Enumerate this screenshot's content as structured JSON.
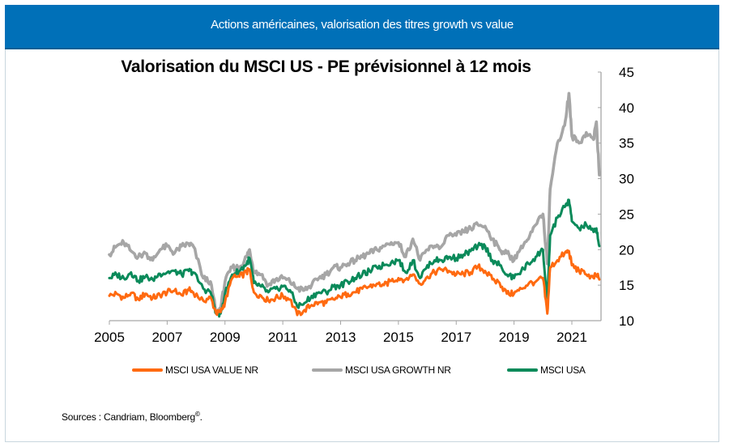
{
  "header": {
    "title": "Actions américaines, valorisation des titres growth vs value"
  },
  "footer": {
    "source": "Sources : Candriam, Bloomberg",
    "source_mark": "©",
    "source_end": "."
  },
  "chart_data": {
    "type": "line",
    "title": "Valorisation du MSCI US - PE prévisionnel à 12 mois",
    "xlabel": "",
    "ylabel": "",
    "xlim": [
      2005,
      2022.0
    ],
    "ylim": [
      10,
      45
    ],
    "y_axis_side": "right",
    "yticks": [
      10,
      15,
      20,
      25,
      30,
      35,
      40,
      45
    ],
    "xticks": [
      2005,
      2007,
      2009,
      2011,
      2013,
      2015,
      2017,
      2019,
      2021
    ],
    "grid": false,
    "legend_position": "bottom",
    "x": [
      2005.0,
      2005.25,
      2005.5,
      2005.75,
      2006.0,
      2006.25,
      2006.5,
      2006.75,
      2007.0,
      2007.25,
      2007.5,
      2007.75,
      2007.9,
      2008.25,
      2008.5,
      2008.7,
      2008.85,
      2009.0,
      2009.25,
      2009.5,
      2009.75,
      2009.85,
      2010.0,
      2010.25,
      2010.5,
      2010.75,
      2011.0,
      2011.25,
      2011.5,
      2011.75,
      2012.0,
      2012.25,
      2012.5,
      2012.75,
      2013.0,
      2013.25,
      2013.5,
      2013.75,
      2014.0,
      2014.25,
      2014.5,
      2014.75,
      2015.0,
      2015.25,
      2015.5,
      2015.75,
      2016.0,
      2016.25,
      2016.5,
      2016.75,
      2017.0,
      2017.25,
      2017.5,
      2017.75,
      2018.0,
      2018.25,
      2018.5,
      2018.75,
      2019.0,
      2019.25,
      2019.5,
      2019.75,
      2020.0,
      2020.15,
      2020.25,
      2020.5,
      2020.75,
      2020.9,
      2021.0,
      2021.25,
      2021.5,
      2021.75,
      2021.85,
      2021.95
    ],
    "series": [
      {
        "name": "MSCI USA VALUE NR",
        "color": "#ff6a10",
        "values": [
          13.5,
          13.8,
          13.2,
          13.9,
          13.0,
          13.8,
          13.2,
          13.6,
          14.0,
          14.2,
          13.6,
          14.3,
          14.0,
          12.8,
          13.3,
          11.0,
          11.2,
          12.6,
          16.0,
          16.2,
          16.8,
          17.2,
          14.0,
          13.5,
          12.8,
          13.2,
          13.5,
          13.0,
          10.8,
          11.5,
          12.2,
          12.6,
          12.5,
          13.0,
          13.3,
          13.8,
          14.0,
          14.5,
          14.8,
          15.2,
          15.0,
          15.6,
          16.0,
          15.8,
          16.5,
          15.2,
          16.2,
          16.8,
          17.2,
          17.0,
          16.5,
          16.6,
          16.8,
          17.6,
          17.0,
          15.8,
          15.3,
          13.8,
          13.8,
          14.5,
          15.2,
          15.5,
          16.0,
          11.0,
          17.5,
          18.5,
          19.5,
          19.8,
          17.8,
          17.0,
          16.5,
          16.0,
          16.5,
          15.8
        ]
      },
      {
        "name": "MSCI USA GROWTH  NR",
        "color": "#a6a6a6",
        "values": [
          19.3,
          20.5,
          21.0,
          19.8,
          19.0,
          19.5,
          18.5,
          20.0,
          20.5,
          19.5,
          20.5,
          20.8,
          20.5,
          16.0,
          15.5,
          11.0,
          11.8,
          15.5,
          17.5,
          17.5,
          19.0,
          20.0,
          17.0,
          16.5,
          15.0,
          15.8,
          16.0,
          15.5,
          14.5,
          14.3,
          15.0,
          16.0,
          16.5,
          17.5,
          17.5,
          18.0,
          18.5,
          19.0,
          19.5,
          20.0,
          20.5,
          21.0,
          21.0,
          19.0,
          21.5,
          18.5,
          20.0,
          20.5,
          20.5,
          22.0,
          22.0,
          22.5,
          23.0,
          23.5,
          23.3,
          21.5,
          20.0,
          19.5,
          18.5,
          20.5,
          21.5,
          23.5,
          25.0,
          18.0,
          28.5,
          35.0,
          37.5,
          42.0,
          36.0,
          35.0,
          36.5,
          35.5,
          38.0,
          30.5
        ]
      },
      {
        "name": "MSCI USA",
        "color": "#0a8a5a",
        "values": [
          16.0,
          16.5,
          16.0,
          16.8,
          15.6,
          16.2,
          15.8,
          16.6,
          16.8,
          17.0,
          16.5,
          17.0,
          16.8,
          14.5,
          14.0,
          11.0,
          11.0,
          13.8,
          16.5,
          17.0,
          18.0,
          18.8,
          15.3,
          14.8,
          14.0,
          14.5,
          14.8,
          14.3,
          12.0,
          12.5,
          13.5,
          14.0,
          14.0,
          14.8,
          15.0,
          15.5,
          16.0,
          16.5,
          17.0,
          17.5,
          17.8,
          18.2,
          18.5,
          16.8,
          18.5,
          16.0,
          17.8,
          18.5,
          18.5,
          19.0,
          18.8,
          19.3,
          19.8,
          20.5,
          20.5,
          18.5,
          17.8,
          16.5,
          16.0,
          17.0,
          18.0,
          19.0,
          20.0,
          12.5,
          22.0,
          24.5,
          26.0,
          27.0,
          24.0,
          23.0,
          23.5,
          22.5,
          23.0,
          20.5
        ]
      }
    ]
  },
  "legend": {
    "items": [
      {
        "label": "MSCI USA VALUE NR",
        "color": "#ff6a10"
      },
      {
        "label": "MSCI USA GROWTH  NR",
        "color": "#a6a6a6"
      },
      {
        "label": "MSCI USA",
        "color": "#0a8a5a"
      }
    ]
  }
}
